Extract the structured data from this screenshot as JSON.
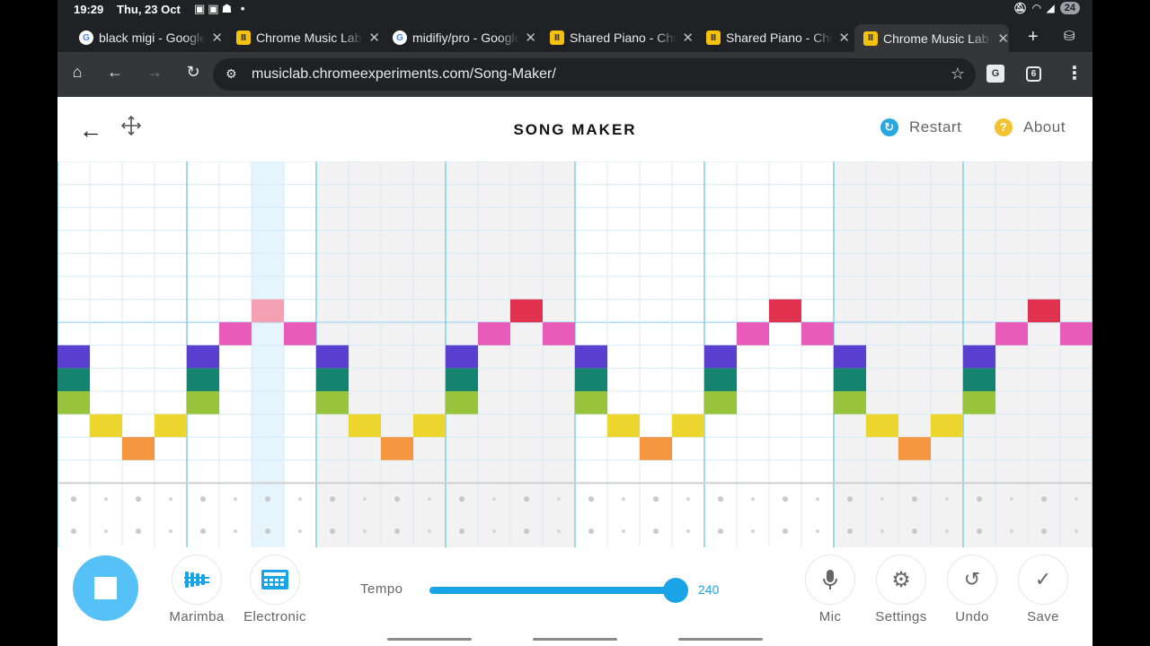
{
  "status": {
    "time": "19:29",
    "date": "Thu, 23 Oct",
    "battery": "24"
  },
  "tabs": [
    {
      "label": "black migi - Google",
      "favicon": "google-icon",
      "active": false
    },
    {
      "label": "Chrome Music Lab",
      "favicon": "music-lab-icon",
      "active": false
    },
    {
      "label": "midifiy/pro - Google",
      "favicon": "google-icon",
      "active": false
    },
    {
      "label": "Shared Piano - Chrome",
      "favicon": "music-lab-icon",
      "active": false
    },
    {
      "label": "Shared Piano - Chrome",
      "favicon": "music-lab-icon",
      "active": false
    },
    {
      "label": "Chrome Music Lab",
      "favicon": "music-lab-icon",
      "active": true
    }
  ],
  "toolbar": {
    "url": "musiclab.chromeexperiments.com/Song-Maker/",
    "tab_count": "6"
  },
  "header": {
    "title": "SONG MAKER",
    "restart_label": "Restart",
    "about_label": "About"
  },
  "grid": {
    "columns": 32,
    "melody_rows": 14,
    "beats_per_bar": 4,
    "highlight_column": 6,
    "shaded_columns": [
      [
        8,
        15
      ],
      [
        24,
        31
      ]
    ],
    "notes": [
      {
        "col": 0,
        "rows": [
          8,
          9,
          10
        ]
      },
      {
        "col": 1,
        "rows": [
          11
        ]
      },
      {
        "col": 2,
        "rows": [
          12
        ]
      },
      {
        "col": 3,
        "rows": [
          11
        ]
      },
      {
        "col": 4,
        "rows": [
          8,
          9,
          10
        ]
      },
      {
        "col": 5,
        "rows": [
          7
        ]
      },
      {
        "col": 6,
        "rows": [
          6
        ],
        "pale": true
      },
      {
        "col": 7,
        "rows": [
          7
        ]
      },
      {
        "col": 8,
        "rows": [
          8,
          9,
          10
        ]
      },
      {
        "col": 9,
        "rows": [
          11
        ]
      },
      {
        "col": 10,
        "rows": [
          12
        ]
      },
      {
        "col": 11,
        "rows": [
          11
        ]
      },
      {
        "col": 12,
        "rows": [
          8,
          9,
          10
        ]
      },
      {
        "col": 13,
        "rows": [
          7
        ]
      },
      {
        "col": 14,
        "rows": [
          6
        ]
      },
      {
        "col": 15,
        "rows": [
          7
        ]
      },
      {
        "col": 16,
        "rows": [
          8,
          9,
          10
        ]
      },
      {
        "col": 17,
        "rows": [
          11
        ]
      },
      {
        "col": 18,
        "rows": [
          12
        ]
      },
      {
        "col": 19,
        "rows": [
          11
        ]
      },
      {
        "col": 20,
        "rows": [
          8,
          9,
          10
        ]
      },
      {
        "col": 21,
        "rows": [
          7
        ]
      },
      {
        "col": 22,
        "rows": [
          6
        ]
      },
      {
        "col": 23,
        "rows": [
          7
        ]
      },
      {
        "col": 24,
        "rows": [
          8,
          9,
          10
        ]
      },
      {
        "col": 25,
        "rows": [
          11
        ]
      },
      {
        "col": 26,
        "rows": [
          12
        ]
      },
      {
        "col": 27,
        "rows": [
          11
        ]
      },
      {
        "col": 28,
        "rows": [
          8,
          9,
          10
        ]
      },
      {
        "col": 29,
        "rows": [
          7
        ]
      },
      {
        "col": 30,
        "rows": [
          6
        ]
      },
      {
        "col": 31,
        "rows": [
          7
        ]
      }
    ],
    "row_colors": {
      "6": "#e0324f",
      "7": "#e85bb9",
      "8": "#5b3fd0",
      "9": "#15846f",
      "10": "#97c43b",
      "11": "#ecd62d",
      "12": "#f5953d"
    },
    "pale_color": "#f4a1b4"
  },
  "bottom": {
    "instrument_1": "Marimba",
    "instrument_2": "Electronic",
    "tempo_label": "Tempo",
    "tempo_value": "240",
    "tempo_fraction": 1.0,
    "mic_label": "Mic",
    "settings_label": "Settings",
    "undo_label": "Undo",
    "save_label": "Save"
  }
}
